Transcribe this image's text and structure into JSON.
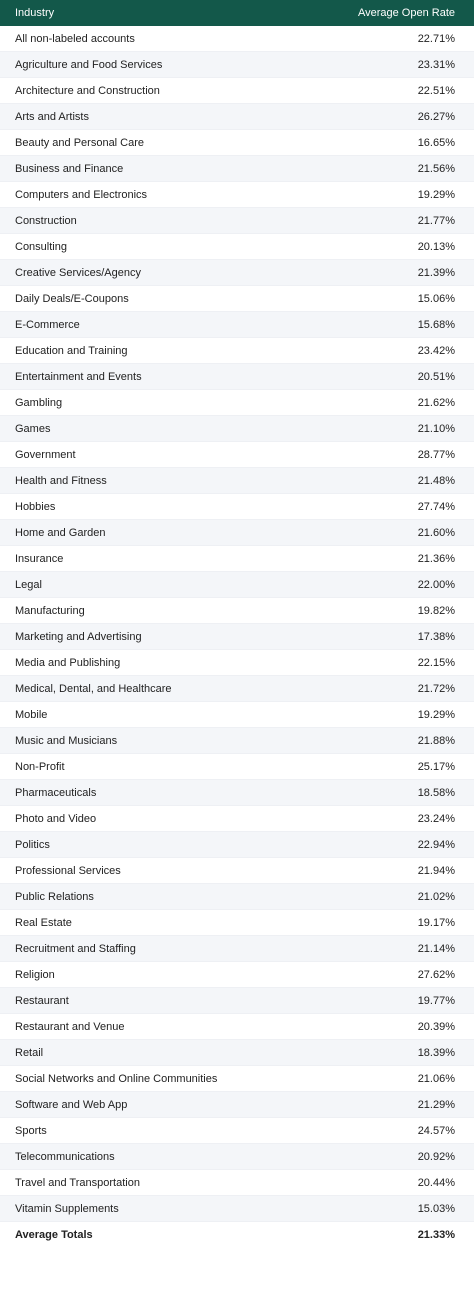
{
  "table": {
    "header": {
      "industry_label": "Industry",
      "rate_label": "Average Open Rate"
    },
    "rows": [
      {
        "industry": "All non-labeled accounts",
        "rate": "22.71%"
      },
      {
        "industry": "Agriculture and Food Services",
        "rate": "23.31%"
      },
      {
        "industry": "Architecture and Construction",
        "rate": "22.51%"
      },
      {
        "industry": "Arts and Artists",
        "rate": "26.27%"
      },
      {
        "industry": "Beauty and Personal Care",
        "rate": "16.65%"
      },
      {
        "industry": "Business and Finance",
        "rate": "21.56%"
      },
      {
        "industry": "Computers and Electronics",
        "rate": "19.29%"
      },
      {
        "industry": "Construction",
        "rate": "21.77%"
      },
      {
        "industry": "Consulting",
        "rate": "20.13%"
      },
      {
        "industry": "Creative Services/Agency",
        "rate": "21.39%"
      },
      {
        "industry": "Daily Deals/E-Coupons",
        "rate": "15.06%"
      },
      {
        "industry": "E-Commerce",
        "rate": "15.68%"
      },
      {
        "industry": "Education and Training",
        "rate": "23.42%"
      },
      {
        "industry": "Entertainment and Events",
        "rate": "20.51%"
      },
      {
        "industry": "Gambling",
        "rate": "21.62%"
      },
      {
        "industry": "Games",
        "rate": "21.10%"
      },
      {
        "industry": "Government",
        "rate": "28.77%"
      },
      {
        "industry": "Health and Fitness",
        "rate": "21.48%"
      },
      {
        "industry": "Hobbies",
        "rate": "27.74%"
      },
      {
        "industry": "Home and Garden",
        "rate": "21.60%"
      },
      {
        "industry": "Insurance",
        "rate": "21.36%"
      },
      {
        "industry": "Legal",
        "rate": "22.00%"
      },
      {
        "industry": "Manufacturing",
        "rate": "19.82%"
      },
      {
        "industry": "Marketing and Advertising",
        "rate": "17.38%"
      },
      {
        "industry": "Media and Publishing",
        "rate": "22.15%"
      },
      {
        "industry": "Medical, Dental, and Healthcare",
        "rate": "21.72%"
      },
      {
        "industry": "Mobile",
        "rate": "19.29%"
      },
      {
        "industry": "Music and Musicians",
        "rate": "21.88%"
      },
      {
        "industry": "Non-Profit",
        "rate": "25.17%"
      },
      {
        "industry": "Pharmaceuticals",
        "rate": "18.58%"
      },
      {
        "industry": "Photo and Video",
        "rate": "23.24%"
      },
      {
        "industry": "Politics",
        "rate": "22.94%"
      },
      {
        "industry": "Professional Services",
        "rate": "21.94%"
      },
      {
        "industry": "Public Relations",
        "rate": "21.02%"
      },
      {
        "industry": "Real Estate",
        "rate": "19.17%"
      },
      {
        "industry": "Recruitment and Staffing",
        "rate": "21.14%"
      },
      {
        "industry": "Religion",
        "rate": "27.62%"
      },
      {
        "industry": "Restaurant",
        "rate": "19.77%"
      },
      {
        "industry": "Restaurant and Venue",
        "rate": "20.39%"
      },
      {
        "industry": "Retail",
        "rate": "18.39%"
      },
      {
        "industry": "Social Networks and Online Communities",
        "rate": "21.06%"
      },
      {
        "industry": "Software and Web App",
        "rate": "21.29%"
      },
      {
        "industry": "Sports",
        "rate": "24.57%"
      },
      {
        "industry": "Telecommunications",
        "rate": "20.92%"
      },
      {
        "industry": "Travel and Transportation",
        "rate": "20.44%"
      },
      {
        "industry": "Vitamin Supplements",
        "rate": "15.03%"
      }
    ],
    "totals": {
      "label": "Average Totals",
      "rate": "21.33%"
    },
    "colors": {
      "header_bg": "#13584a",
      "header_text": "#ffffff",
      "stripe_bg": "#f4f6f9"
    }
  }
}
